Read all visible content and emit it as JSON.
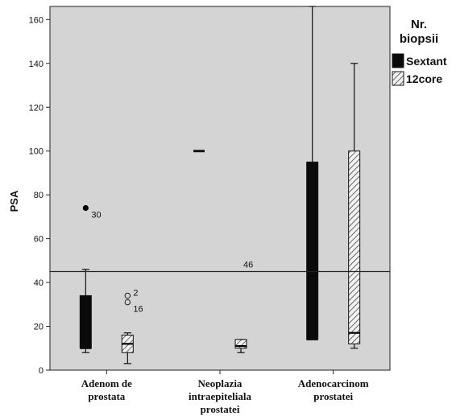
{
  "chart_data": {
    "type": "boxplot",
    "title": "",
    "ylabel": "PSA",
    "xlabel": "",
    "ylim": [
      0,
      166
    ],
    "yticks": [
      0,
      20,
      40,
      60,
      80,
      100,
      120,
      140,
      160
    ],
    "grid": false,
    "legend": {
      "title_lines": [
        "Nr.",
        "biopsii"
      ],
      "placement": "right",
      "entries": [
        {
          "name": "Sextant",
          "style": "solid"
        },
        {
          "name": "12core",
          "style": "hatched"
        }
      ]
    },
    "categories": [
      {
        "lines": [
          "Adenom de",
          "prostata"
        ]
      },
      {
        "lines": [
          "Neoplazia",
          "intraepiteliala",
          "prostatei"
        ]
      },
      {
        "lines": [
          "Adenocarcinom",
          "prostatei"
        ]
      }
    ],
    "reference_line": {
      "y": 45,
      "label": "46"
    },
    "series": [
      {
        "name": "Sextant",
        "boxes": [
          {
            "min": 8,
            "q1": 10,
            "median": 10,
            "q3": 34,
            "max": 46,
            "outliers": [
              {
                "y": 74,
                "label": "30",
                "marker": "filled"
              }
            ]
          },
          {
            "min": 100,
            "q1": 100,
            "median": 100,
            "q3": 100,
            "max": 100,
            "outliers": []
          },
          {
            "min": 14,
            "q1": 14,
            "median": 14,
            "q3": 95,
            "max": 166,
            "outliers": []
          }
        ]
      },
      {
        "name": "12core",
        "boxes": [
          {
            "min": 3,
            "q1": 8,
            "median": 12,
            "q3": 16,
            "max": 17,
            "outliers": [
              {
                "y": 34,
                "label": "2",
                "marker": "open"
              },
              {
                "y": 31,
                "label": "16",
                "marker": "open"
              }
            ]
          },
          {
            "min": 8,
            "q1": 10,
            "median": 11,
            "q3": 14,
            "max": 14,
            "outliers": []
          },
          {
            "min": 10,
            "q1": 12,
            "median": 17,
            "q3": 100,
            "max": 140,
            "outliers": []
          }
        ]
      }
    ],
    "colors": {
      "plot_background": "#d4d4d4",
      "sextant_fill": "#0a0a0a",
      "hatch_background": "#f2f2f2",
      "hatch_line": "#444444",
      "reference_line": "#222222"
    }
  }
}
